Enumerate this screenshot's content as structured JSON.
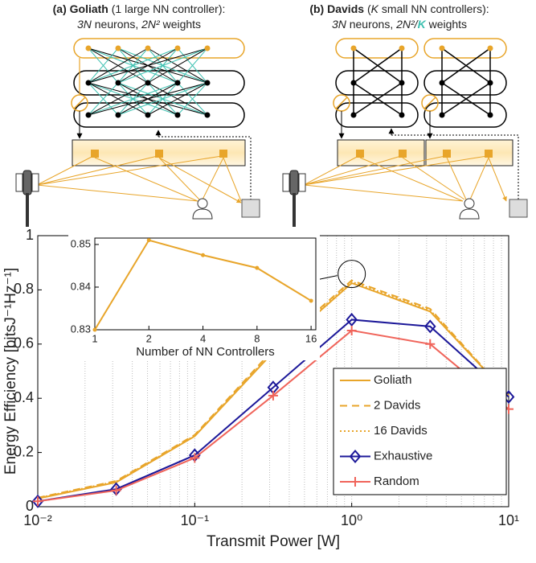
{
  "diagram": {
    "panels": [
      {
        "tag": "(a)",
        "name": "Goliath",
        "note": "(1 large NN controller):",
        "line2": [
          "3N",
          " neurons, ",
          "2N²",
          " weights"
        ]
      },
      {
        "tag": "(b)",
        "name": "Davids",
        "note_parts": [
          "(",
          "K",
          " small NN controllers):"
        ],
        "line2": [
          "3N",
          " neurons, ",
          "2N²/",
          "K",
          " weights"
        ]
      }
    ]
  },
  "chart_data": [
    {
      "type": "line",
      "xscale": "log",
      "xlabel": "Transmit Power [W]",
      "ylabel": "Energy Efficiency [bitsJ⁻¹Hz⁻¹]",
      "x": [
        0.01,
        0.0316,
        0.1,
        0.316,
        1,
        3.16,
        10
      ],
      "xlim": [
        0.01,
        10
      ],
      "xticks": [
        {
          "value": 0.01,
          "label": "10⁻²"
        },
        {
          "value": 0.1,
          "label": "10⁻¹"
        },
        {
          "value": 1,
          "label": "10⁰"
        },
        {
          "value": 10,
          "label": "10¹"
        }
      ],
      "xminor": [
        0.02,
        0.03,
        0.04,
        0.05,
        0.06,
        0.07,
        0.08,
        0.09,
        0.2,
        0.3,
        0.4,
        0.5,
        0.6,
        0.7,
        0.8,
        0.9,
        2,
        3,
        4,
        5,
        6,
        7,
        8,
        9
      ],
      "ylim": [
        0,
        1
      ],
      "yticks": [
        0,
        0.2,
        0.4,
        0.6,
        0.8,
        1
      ],
      "grid": "x-dotted",
      "legend": "lower right",
      "series": [
        {
          "name": "Goliath",
          "color": "#e8a52a",
          "linestyle": "solid",
          "values": [
            0.03,
            0.09,
            0.26,
            0.57,
            0.825,
            0.72,
            0.41
          ]
        },
        {
          "name": "2 Davids",
          "color": "#e8a52a",
          "linestyle": "dashed",
          "values": [
            0.033,
            0.095,
            0.265,
            0.58,
            0.835,
            0.73,
            0.41
          ]
        },
        {
          "name": "16 Davids",
          "color": "#e8a52a",
          "linestyle": "dotted",
          "values": [
            0.032,
            0.093,
            0.262,
            0.575,
            0.83,
            0.725,
            0.41
          ]
        },
        {
          "name": "Exhaustive",
          "color": "#1c1899",
          "linestyle": "solid",
          "marker": "diamond",
          "values": [
            0.02,
            0.065,
            0.19,
            0.44,
            0.69,
            0.665,
            0.405
          ]
        },
        {
          "name": "Random",
          "color": "#f0645a",
          "linestyle": "solid",
          "marker": "plus",
          "values": [
            0.02,
            0.06,
            0.18,
            0.41,
            0.65,
            0.6,
            0.36
          ]
        }
      ]
    },
    {
      "type": "line",
      "xscale": "log2",
      "xlabel": "Number of NN Controllers",
      "x": [
        1,
        2,
        4,
        8,
        16
      ],
      "xlim": [
        1,
        17
      ],
      "xticks": [
        1,
        2,
        4,
        8,
        16
      ],
      "ylim": [
        0.83,
        0.8515
      ],
      "yticks": [
        0.83,
        0.84,
        0.85
      ],
      "series": [
        {
          "name": "Goliath",
          "color": "#e8a52a",
          "values": [
            0.83,
            0.851,
            0.8475,
            0.8445,
            0.8368
          ]
        }
      ]
    }
  ]
}
